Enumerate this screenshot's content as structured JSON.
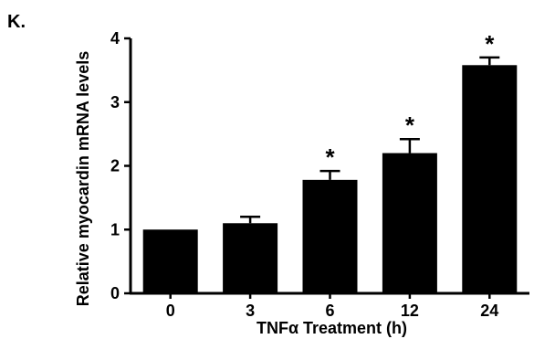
{
  "panel_label": "K.",
  "chart_data": {
    "type": "bar",
    "categories": [
      "0",
      "3",
      "6",
      "12",
      "24"
    ],
    "values": [
      1.0,
      1.1,
      1.78,
      2.2,
      3.58
    ],
    "errors": [
      0.0,
      0.1,
      0.14,
      0.22,
      0.12
    ],
    "significance": [
      "",
      "",
      "*",
      "*",
      "*"
    ],
    "xlabel": "TNFα Treatment (h)",
    "ylabel": "Relative myocardin mRNA levels",
    "ylim": [
      0,
      4
    ],
    "yticks": [
      "0",
      "1",
      "2",
      "3",
      "4"
    ],
    "grid": false,
    "legend": "none",
    "bar_color": "#000000"
  }
}
